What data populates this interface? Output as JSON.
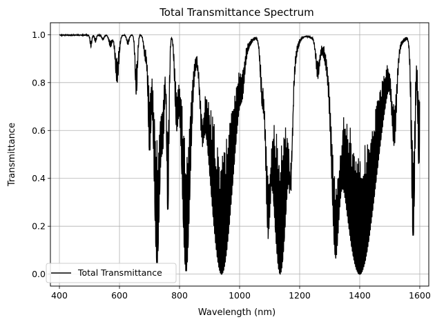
{
  "chart_data": {
    "type": "line",
    "title": "Total Transmittance Spectrum",
    "xlabel": "Wavelength (nm)",
    "ylabel": "Transmittance",
    "xlim": [
      370,
      1630
    ],
    "ylim": [
      -0.05,
      1.05
    ],
    "xticks": [
      400,
      600,
      800,
      1000,
      1200,
      1400,
      1600
    ],
    "yticks": [
      0.0,
      0.2,
      0.4,
      0.6,
      0.8,
      1.0
    ],
    "grid": true,
    "legend_position": "lower-left",
    "series": [
      {
        "name": "Total Transmittance",
        "color": "#000000",
        "absorption_bands": [
          {
            "center": 505,
            "width": 3,
            "depth": 0.05
          },
          {
            "center": 520,
            "width": 3,
            "depth": 0.03
          },
          {
            "center": 545,
            "width": 4,
            "depth": 0.02
          },
          {
            "center": 570,
            "width": 5,
            "depth": 0.05
          },
          {
            "center": 592,
            "width": 6,
            "depth": 0.2
          },
          {
            "center": 628,
            "width": 4,
            "depth": 0.04
          },
          {
            "center": 656,
            "width": 4,
            "depth": 0.25
          },
          {
            "center": 686,
            "width": 5,
            "depth": 0.1
          },
          {
            "center": 700,
            "width": 5,
            "depth": 0.47
          },
          {
            "center": 725,
            "width": 10,
            "depth": 0.96
          },
          {
            "center": 745,
            "width": 6,
            "depth": 0.4
          },
          {
            "center": 761,
            "width": 4,
            "depth": 0.75
          },
          {
            "center": 790,
            "width": 6,
            "depth": 0.35
          },
          {
            "center": 822,
            "width": 14,
            "depth": 0.99
          },
          {
            "center": 875,
            "width": 7,
            "depth": 0.3
          },
          {
            "center": 940,
            "width": 38,
            "depth": 1.0
          },
          {
            "center": 1010,
            "width": 6,
            "depth": 0.1
          },
          {
            "center": 1075,
            "width": 6,
            "depth": 0.25
          },
          {
            "center": 1095,
            "width": 8,
            "depth": 0.8
          },
          {
            "center": 1135,
            "width": 25,
            "depth": 1.0
          },
          {
            "center": 1170,
            "width": 6,
            "depth": 0.5
          },
          {
            "center": 1260,
            "width": 6,
            "depth": 0.15
          },
          {
            "center": 1320,
            "width": 12,
            "depth": 0.9
          },
          {
            "center": 1400,
            "width": 55,
            "depth": 1.0
          },
          {
            "center": 1515,
            "width": 8,
            "depth": 0.4
          },
          {
            "center": 1578,
            "width": 6,
            "depth": 0.85
          },
          {
            "center": 1597,
            "width": 4,
            "depth": 0.55
          }
        ]
      }
    ]
  }
}
